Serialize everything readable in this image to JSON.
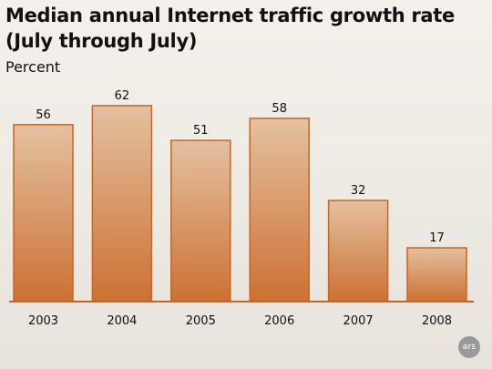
{
  "chart_data": {
    "type": "bar",
    "title": "Median annual Internet traffic growth rate (July through July)",
    "ylabel": "Percent",
    "xlabel": "",
    "categories": [
      "2003",
      "2004",
      "2005",
      "2006",
      "2007",
      "2008"
    ],
    "values": [
      56,
      62,
      51,
      58,
      32,
      17
    ],
    "ylim": [
      0,
      62
    ],
    "grid": false,
    "legend": "none",
    "data_labels": true,
    "colors": {
      "bar_top": "#e4c0a0",
      "bar_bottom": "#cc7133",
      "bar_stroke": "#c9651f",
      "axis": "#c9651f",
      "background": "#efebe6"
    }
  },
  "watermark": {
    "text": "ars"
  }
}
